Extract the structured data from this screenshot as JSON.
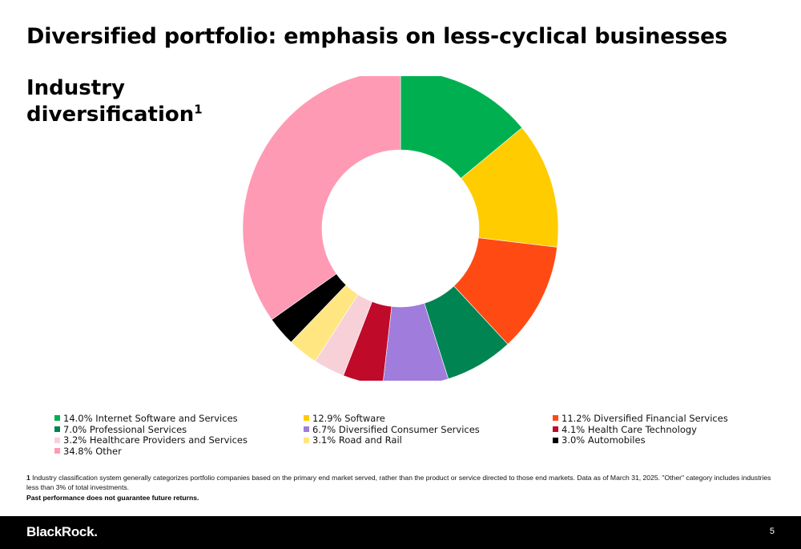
{
  "page": {
    "title": "Diversified portfolio: emphasis on less-cyclical businesses",
    "section_title": "Industry diversification",
    "section_footnote_marker": "1"
  },
  "chart_data": {
    "type": "pie",
    "donut": true,
    "start": "12 o'clock",
    "direction": "clockwise",
    "slices": [
      {
        "label": "14.0% Internet Software and Services",
        "value": 14.0,
        "color": "#00b050"
      },
      {
        "label": "12.9% Software",
        "value": 12.9,
        "color": "#ffcc00"
      },
      {
        "label": "11.2% Diversified Financial Services",
        "value": 11.2,
        "color": "#ff4a14"
      },
      {
        "label": "7.0% Professional Services",
        "value": 7.0,
        "color": "#008452"
      },
      {
        "label": "6.7% Diversified Consumer Services",
        "value": 6.7,
        "color": "#a07cdc"
      },
      {
        "label": "4.1% Health Care Technology",
        "value": 4.1,
        "color": "#c00a2a"
      },
      {
        "label": "3.2% Healthcare Providers and Services",
        "value": 3.2,
        "color": "#f8d0d8"
      },
      {
        "label": "3.1% Road and Rail",
        "value": 3.1,
        "color": "#ffe680"
      },
      {
        "label": "3.0% Automobiles",
        "value": 3.0,
        "color": "#000000"
      },
      {
        "label": "34.8% Other",
        "value": 34.8,
        "color": "#ff9ab4"
      }
    ],
    "legend_position": "bottom"
  },
  "footnote": {
    "marker": "1",
    "text": "Industry classification system generally categorizes portfolio companies based on the primary end market served, rather than the product or service directed to those end markets. Data as of March 31, 2025. \"Other\" category includes industries less than 3% of total investments."
  },
  "disclaimer": "Past performance does not guarantee future returns.",
  "footer": {
    "brand": "BlackRock.",
    "page_number": "5"
  }
}
